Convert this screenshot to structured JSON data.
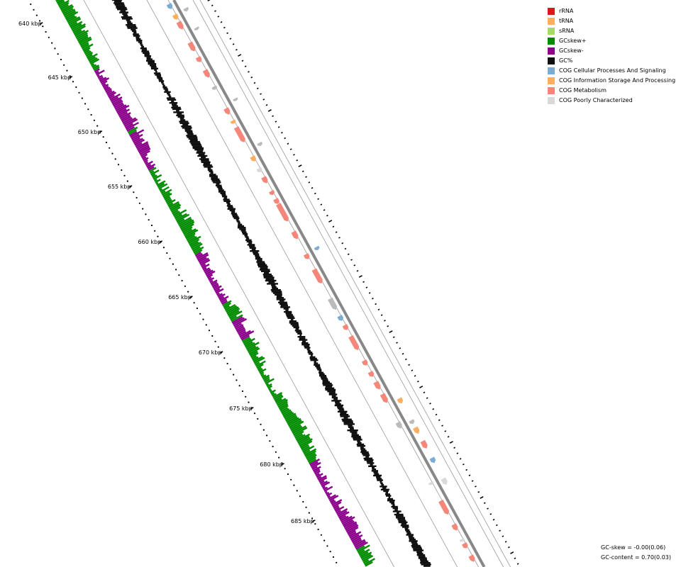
{
  "legend": [
    {
      "label": "rRNA",
      "color": "#d7191c"
    },
    {
      "label": "tRNA",
      "color": "#fdae61"
    },
    {
      "label": "sRNA",
      "color": "#a6d96a"
    },
    {
      "label": "GCskew+",
      "color": "#008c00"
    },
    {
      "label": "GCskew-",
      "color": "#8b008b"
    },
    {
      "label": "GC%",
      "color": "#111111"
    },
    {
      "label": "COG Cellular Processes And Signaling",
      "color": "#7aadd4"
    },
    {
      "label": "COG Information Storage And Processing",
      "color": "#fdae61"
    },
    {
      "label": "COG Metabolism",
      "color": "#f4877a"
    },
    {
      "label": "COG Poorly Characterized",
      "color": "#d9d9d9"
    }
  ],
  "stats": {
    "gc_skew": "GC-skew = -0.00(0.06)",
    "gc_content": "GC-content = 0.70(0.03)"
  },
  "ruler": {
    "labels": [
      "640 kbp",
      "645 kbp",
      "650 kbp",
      "655 kbp",
      "660 kbp",
      "665 kbp",
      "670 kbp",
      "675 kbp",
      "680 kbp",
      "685 kbp"
    ]
  },
  "colors": {
    "gc_skew_pos": "#008c00",
    "gc_skew_neg": "#8b008b",
    "gc_percent": "#111111",
    "backbone": "#888888",
    "hypothetical": "#bbbbbb",
    "cog_metabolism": "#f4877a",
    "cog_info": "#fdae61",
    "cog_cellular": "#7aadd4",
    "cog_poor": "#d9d9d9"
  }
}
